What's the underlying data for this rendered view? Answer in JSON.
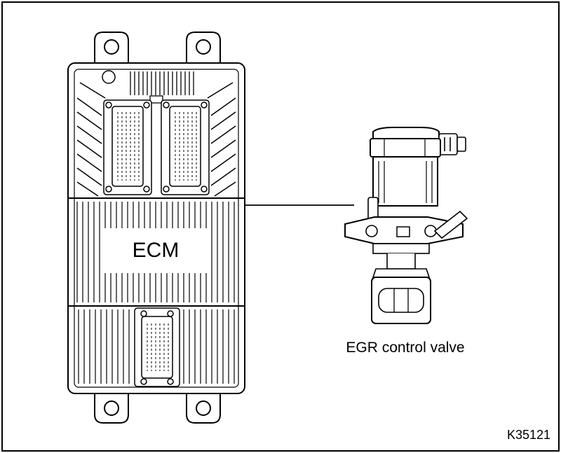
{
  "labels": {
    "ecm": "ECM",
    "egr": "EGR control valve",
    "figure_code": "K35121"
  },
  "colors": {
    "stroke": "#000000",
    "fill": "#ffffff"
  }
}
